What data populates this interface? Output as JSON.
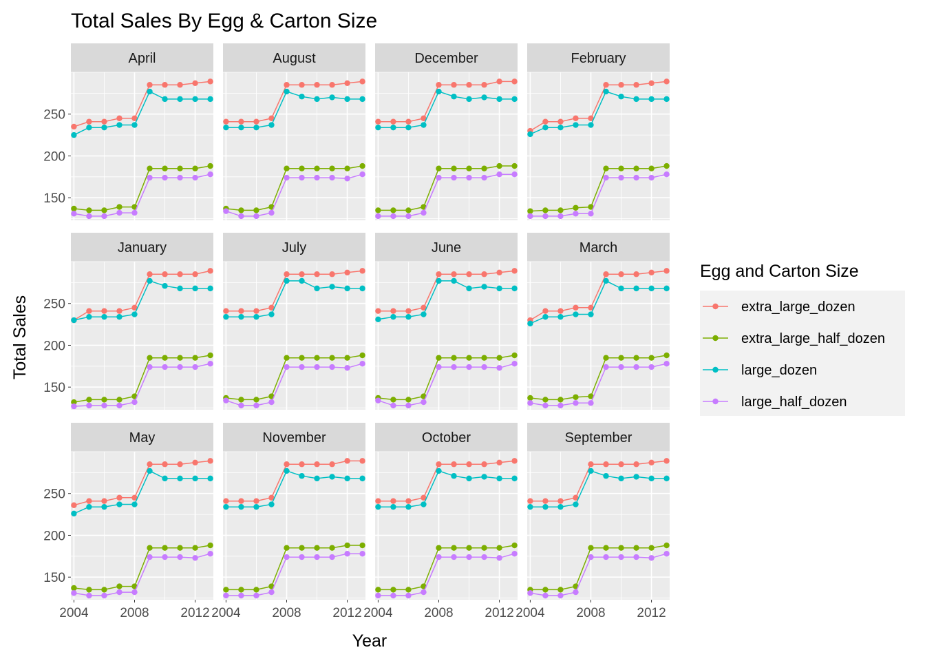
{
  "colors": {
    "extra_large_dozen": "#F8766D",
    "extra_large_half_dozen": "#7CAE00",
    "large_dozen": "#00BFC4",
    "large_half_dozen": "#C77CFF",
    "panel_bg": "#EBEBEB",
    "strip_bg": "#D9D9D9",
    "grid": "#FFFFFF"
  },
  "chart_data": {
    "type": "line",
    "title": "Total Sales By Egg & Carton Size",
    "xlabel": "Year",
    "ylabel": "Total Sales",
    "legend_title": "Egg and Carton Size",
    "legend_position": "right",
    "grid": true,
    "xlim": [
      2003.8,
      2013.2
    ],
    "ylim": [
      123,
      300
    ],
    "x_ticks": [
      2004,
      2008,
      2012
    ],
    "y_ticks": [
      150,
      200,
      250
    ],
    "x_tick_labels": [
      "2004",
      "2008",
      "2012"
    ],
    "y_tick_labels": [
      "150",
      "200",
      "250"
    ],
    "x": [
      2004,
      2005,
      2006,
      2007,
      2008,
      2009,
      2010,
      2011,
      2012,
      2013
    ],
    "series_names": [
      "extra_large_dozen",
      "extra_large_half_dozen",
      "large_dozen",
      "large_half_dozen"
    ],
    "panels": [
      {
        "month": "April",
        "series": [
          {
            "name": "extra_large_dozen",
            "values": [
              235,
              241,
              241,
              245,
              245,
              285,
              285,
              285,
              287,
              289
            ]
          },
          {
            "name": "extra_large_half_dozen",
            "values": [
              137,
              135,
              135,
              139,
              139,
              185,
              185,
              185,
              185,
              188
            ]
          },
          {
            "name": "large_dozen",
            "values": [
              225,
              234,
              234,
              237,
              237,
              277,
              268,
              268,
              268,
              268
            ]
          },
          {
            "name": "large_half_dozen",
            "values": [
              131,
              128,
              128,
              132,
              132,
              174,
              174,
              174,
              174,
              178
            ]
          }
        ]
      },
      {
        "month": "August",
        "series": [
          {
            "name": "extra_large_dozen",
            "values": [
              241,
              241,
              241,
              245,
              285,
              285,
              285,
              285,
              287,
              289
            ]
          },
          {
            "name": "extra_large_half_dozen",
            "values": [
              137,
              135,
              135,
              139,
              185,
              185,
              185,
              185,
              185,
              188
            ]
          },
          {
            "name": "large_dozen",
            "values": [
              234,
              234,
              234,
              237,
              277,
              271,
              268,
              270,
              268,
              268
            ]
          },
          {
            "name": "large_half_dozen",
            "values": [
              134,
              128,
              128,
              132,
              174,
              174,
              174,
              174,
              173,
              178
            ]
          }
        ]
      },
      {
        "month": "December",
        "series": [
          {
            "name": "extra_large_dozen",
            "values": [
              241,
              241,
              241,
              245,
              285,
              285,
              285,
              285,
              289,
              289
            ]
          },
          {
            "name": "extra_large_half_dozen",
            "values": [
              135,
              135,
              135,
              139,
              185,
              185,
              185,
              185,
              188,
              188
            ]
          },
          {
            "name": "large_dozen",
            "values": [
              234,
              234,
              234,
              237,
              277,
              271,
              268,
              270,
              268,
              268
            ]
          },
          {
            "name": "large_half_dozen",
            "values": [
              128,
              128,
              128,
              132,
              174,
              174,
              174,
              174,
              178,
              178
            ]
          }
        ]
      },
      {
        "month": "February",
        "series": [
          {
            "name": "extra_large_dozen",
            "values": [
              230,
              241,
              241,
              245,
              245,
              285,
              285,
              285,
              287,
              289
            ]
          },
          {
            "name": "extra_large_half_dozen",
            "values": [
              134,
              135,
              135,
              138,
              139,
              185,
              185,
              185,
              185,
              188
            ]
          },
          {
            "name": "large_dozen",
            "values": [
              226,
              234,
              234,
              237,
              237,
              277,
              271,
              268,
              268,
              268
            ]
          },
          {
            "name": "large_half_dozen",
            "values": [
              128,
              128,
              128,
              131,
              131,
              174,
              174,
              174,
              174,
              178
            ]
          }
        ]
      },
      {
        "month": "January",
        "series": [
          {
            "name": "extra_large_dozen",
            "values": [
              230,
              241,
              241,
              241,
              245,
              285,
              285,
              285,
              285,
              289
            ]
          },
          {
            "name": "extra_large_half_dozen",
            "values": [
              132,
              135,
              135,
              135,
              139,
              185,
              185,
              185,
              185,
              188
            ]
          },
          {
            "name": "large_dozen",
            "values": [
              230,
              234,
              234,
              234,
              237,
              277,
              271,
              268,
              268,
              268
            ]
          },
          {
            "name": "large_half_dozen",
            "values": [
              127,
              128,
              128,
              128,
              132,
              174,
              174,
              174,
              174,
              178
            ]
          }
        ]
      },
      {
        "month": "July",
        "series": [
          {
            "name": "extra_large_dozen",
            "values": [
              241,
              241,
              241,
              245,
              285,
              285,
              285,
              285,
              287,
              289
            ]
          },
          {
            "name": "extra_large_half_dozen",
            "values": [
              137,
              135,
              135,
              139,
              185,
              185,
              185,
              185,
              185,
              188
            ]
          },
          {
            "name": "large_dozen",
            "values": [
              234,
              234,
              234,
              237,
              277,
              277,
              268,
              270,
              268,
              268
            ]
          },
          {
            "name": "large_half_dozen",
            "values": [
              134,
              128,
              128,
              132,
              174,
              174,
              174,
              174,
              173,
              178
            ]
          }
        ]
      },
      {
        "month": "June",
        "series": [
          {
            "name": "extra_large_dozen",
            "values": [
              241,
              241,
              241,
              245,
              285,
              285,
              285,
              285,
              287,
              289
            ]
          },
          {
            "name": "extra_large_half_dozen",
            "values": [
              137,
              135,
              135,
              139,
              185,
              185,
              185,
              185,
              185,
              188
            ]
          },
          {
            "name": "large_dozen",
            "values": [
              231,
              234,
              234,
              237,
              277,
              277,
              268,
              270,
              268,
              268
            ]
          },
          {
            "name": "large_half_dozen",
            "values": [
              134,
              128,
              128,
              132,
              174,
              174,
              174,
              174,
              173,
              178
            ]
          }
        ]
      },
      {
        "month": "March",
        "series": [
          {
            "name": "extra_large_dozen",
            "values": [
              230,
              241,
              241,
              245,
              245,
              285,
              285,
              285,
              287,
              289
            ]
          },
          {
            "name": "extra_large_half_dozen",
            "values": [
              137,
              135,
              135,
              138,
              139,
              185,
              185,
              185,
              185,
              188
            ]
          },
          {
            "name": "large_dozen",
            "values": [
              226,
              234,
              234,
              237,
              237,
              277,
              268,
              268,
              268,
              268
            ]
          },
          {
            "name": "large_half_dozen",
            "values": [
              131,
              128,
              128,
              131,
              131,
              174,
              174,
              174,
              174,
              178
            ]
          }
        ]
      },
      {
        "month": "May",
        "series": [
          {
            "name": "extra_large_dozen",
            "values": [
              236,
              241,
              241,
              245,
              245,
              285,
              285,
              285,
              287,
              289
            ]
          },
          {
            "name": "extra_large_half_dozen",
            "values": [
              137,
              135,
              135,
              139,
              139,
              185,
              185,
              185,
              185,
              188
            ]
          },
          {
            "name": "large_dozen",
            "values": [
              226,
              234,
              234,
              237,
              237,
              277,
              268,
              268,
              268,
              268
            ]
          },
          {
            "name": "large_half_dozen",
            "values": [
              131,
              128,
              128,
              132,
              132,
              174,
              174,
              174,
              173,
              178
            ]
          }
        ]
      },
      {
        "month": "November",
        "series": [
          {
            "name": "extra_large_dozen",
            "values": [
              241,
              241,
              241,
              245,
              285,
              285,
              285,
              285,
              289,
              289
            ]
          },
          {
            "name": "extra_large_half_dozen",
            "values": [
              135,
              135,
              135,
              139,
              185,
              185,
              185,
              185,
              188,
              188
            ]
          },
          {
            "name": "large_dozen",
            "values": [
              234,
              234,
              234,
              237,
              277,
              271,
              268,
              270,
              268,
              268
            ]
          },
          {
            "name": "large_half_dozen",
            "values": [
              128,
              128,
              128,
              132,
              174,
              174,
              174,
              174,
              178,
              178
            ]
          }
        ]
      },
      {
        "month": "October",
        "series": [
          {
            "name": "extra_large_dozen",
            "values": [
              241,
              241,
              241,
              245,
              285,
              285,
              285,
              285,
              287,
              289
            ]
          },
          {
            "name": "extra_large_half_dozen",
            "values": [
              135,
              135,
              135,
              139,
              185,
              185,
              185,
              185,
              185,
              188
            ]
          },
          {
            "name": "large_dozen",
            "values": [
              234,
              234,
              234,
              237,
              277,
              271,
              268,
              270,
              268,
              268
            ]
          },
          {
            "name": "large_half_dozen",
            "values": [
              128,
              128,
              128,
              132,
              174,
              174,
              174,
              174,
              173,
              178
            ]
          }
        ]
      },
      {
        "month": "September",
        "series": [
          {
            "name": "extra_large_dozen",
            "values": [
              241,
              241,
              241,
              245,
              285,
              285,
              285,
              285,
              287,
              289
            ]
          },
          {
            "name": "extra_large_half_dozen",
            "values": [
              135,
              135,
              135,
              139,
              185,
              185,
              185,
              185,
              185,
              188
            ]
          },
          {
            "name": "large_dozen",
            "values": [
              234,
              234,
              234,
              237,
              277,
              271,
              268,
              270,
              268,
              268
            ]
          },
          {
            "name": "large_half_dozen",
            "values": [
              131,
              128,
              128,
              132,
              174,
              174,
              174,
              174,
              173,
              178
            ]
          }
        ]
      }
    ]
  }
}
